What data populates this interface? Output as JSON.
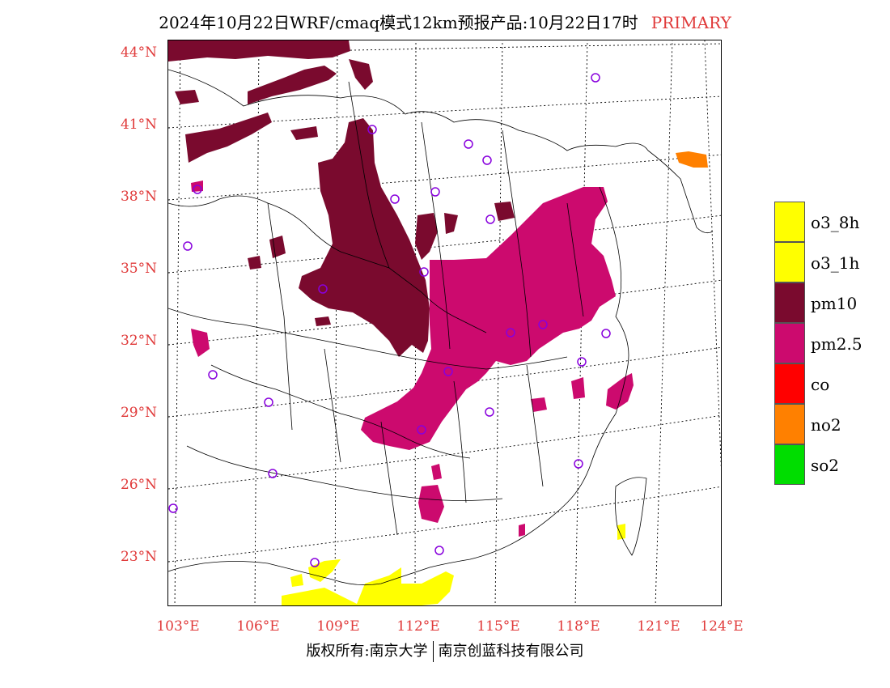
{
  "title": {
    "main": "2024年10月22日WRF/cmaq模式12km预报产品:10月22日17时",
    "tag": "PRIMARY"
  },
  "axes": {
    "lat_labels": [
      "44°N",
      "41°N",
      "38°N",
      "35°N",
      "32°N",
      "29°N",
      "26°N",
      "23°N"
    ],
    "lon_labels": [
      "103°E",
      "106°E",
      "109°E",
      "112°E",
      "115°E",
      "118°E",
      "121°E",
      "124°E"
    ]
  },
  "legend": {
    "items": [
      {
        "label": "o3_8h",
        "color": "#ffff00"
      },
      {
        "label": "o3_1h",
        "color": "#ffff00"
      },
      {
        "label": "pm10",
        "color": "#7a0a2e"
      },
      {
        "label": "pm2.5",
        "color": "#cc0a6e"
      },
      {
        "label": "co",
        "color": "#ff0000"
      },
      {
        "label": "no2",
        "color": "#ff8000"
      },
      {
        "label": "so2",
        "color": "#00dd00"
      }
    ]
  },
  "footer": {
    "copyright": "版权所有:南京大学",
    "company": "南京创蓝科技有限公司"
  },
  "colors": {
    "label_red": "#e03a3a",
    "pm10": "#7a0a2e",
    "pm25": "#cc0a6e",
    "o3": "#ffff00",
    "no2": "#ff8000",
    "station": "#8800dd"
  }
}
